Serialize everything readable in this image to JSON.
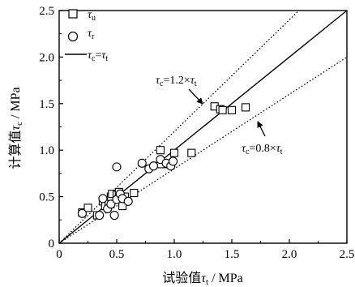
{
  "chart_data": {
    "type": "scatter",
    "xlabel": "试验值τt / MPa",
    "ylabel": "计算值τc / MPa",
    "xlim": [
      0,
      2.5
    ],
    "ylim": [
      0,
      2.5
    ],
    "xticks": [
      "0",
      "0.5",
      "1.0",
      "1.5",
      "2.0",
      "2.5"
    ],
    "yticks": [
      "0",
      "0.5",
      "1.0",
      "1.5",
      "2.0",
      "2.5"
    ],
    "grid": false,
    "legend_position": "top-left",
    "legend": [
      {
        "label": "τu",
        "marker": "square"
      },
      {
        "label": "τr",
        "marker": "circle"
      },
      {
        "label": "τc=τt",
        "marker": "solid-line"
      }
    ],
    "series": [
      {
        "name": "τu",
        "marker": "square",
        "points": [
          [
            0.2,
            0.33
          ],
          [
            0.25,
            0.38
          ],
          [
            0.33,
            0.3
          ],
          [
            0.38,
            0.45
          ],
          [
            0.4,
            0.4
          ],
          [
            0.43,
            0.44
          ],
          [
            0.45,
            0.5
          ],
          [
            0.46,
            0.53
          ],
          [
            0.5,
            0.52
          ],
          [
            0.52,
            0.55
          ],
          [
            0.55,
            0.4
          ],
          [
            0.57,
            0.5
          ],
          [
            0.65,
            0.54
          ],
          [
            0.88,
            0.85
          ],
          [
            0.88,
            1.0
          ],
          [
            0.95,
            0.85
          ],
          [
            1.0,
            0.97
          ],
          [
            1.15,
            0.97
          ],
          [
            1.35,
            1.47
          ],
          [
            1.4,
            1.44
          ],
          [
            1.42,
            1.43
          ],
          [
            1.5,
            1.43
          ],
          [
            1.62,
            1.46
          ]
        ]
      },
      {
        "name": "τr",
        "marker": "circle",
        "points": [
          [
            0.2,
            0.32
          ],
          [
            0.35,
            0.3
          ],
          [
            0.38,
            0.48
          ],
          [
            0.42,
            0.37
          ],
          [
            0.45,
            0.42
          ],
          [
            0.48,
            0.3
          ],
          [
            0.5,
            0.47
          ],
          [
            0.53,
            0.53
          ],
          [
            0.55,
            0.48
          ],
          [
            0.6,
            0.45
          ],
          [
            0.5,
            0.82
          ],
          [
            0.72,
            0.86
          ],
          [
            0.78,
            0.8
          ],
          [
            0.82,
            0.83
          ],
          [
            0.88,
            0.9
          ],
          [
            0.93,
            0.86
          ],
          [
            0.97,
            0.83
          ],
          [
            0.99,
            0.88
          ]
        ]
      }
    ],
    "reference_lines": [
      {
        "name": "τc=τt",
        "slope": 1.0,
        "style": "solid"
      },
      {
        "name": "τc=1.2×τt",
        "slope": 1.2,
        "style": "dotted"
      },
      {
        "name": "τc=0.8×τt",
        "slope": 0.8,
        "style": "dotted"
      }
    ],
    "annotations": [
      {
        "text": "τc=1.2×τt",
        "points_to_line": "τc=1.2×τt"
      },
      {
        "text": "τc=0.8×τt",
        "points_to_line": "τc=0.8×τt"
      }
    ]
  }
}
